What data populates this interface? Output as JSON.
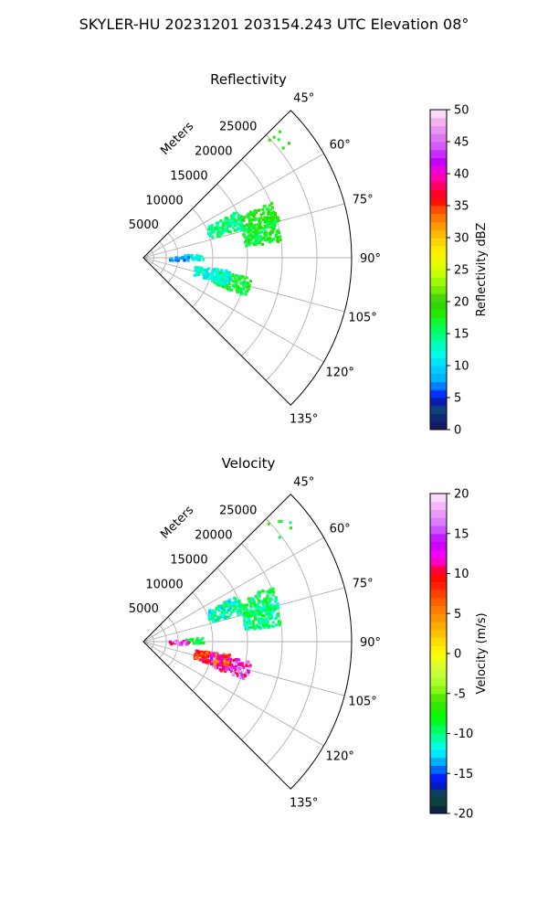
{
  "suptitle": "SKYLER-HU  20231201  203154.243 UTC Elevation 08°",
  "chart_data": [
    {
      "type": "polar-sector",
      "title": "Reflectivity",
      "range_label": "Meters",
      "angle_ticks": [
        "45°",
        "60°",
        "75°",
        "90°",
        "105°",
        "120°",
        "135°"
      ],
      "angle_values": [
        45,
        60,
        75,
        90,
        105,
        120,
        135
      ],
      "range_ticks": [
        "5000",
        "10000",
        "15000",
        "20000",
        "25000"
      ],
      "range_values": [
        5000,
        10000,
        15000,
        20000,
        25000
      ],
      "range_max": 30000,
      "colorbar": {
        "label": "Reflectivity dBZ",
        "min": 0,
        "max": 50,
        "ticks": [
          "0",
          "5",
          "10",
          "15",
          "20",
          "25",
          "30",
          "35",
          "40",
          "45",
          "50"
        ],
        "tick_values": [
          0,
          5,
          10,
          15,
          20,
          25,
          30,
          35,
          40,
          45,
          50
        ]
      },
      "echo_regions": [
        {
          "az": 71,
          "r": 17500,
          "value": 18
        },
        {
          "az": 78,
          "r": 17200,
          "value": 17
        },
        {
          "az": 68,
          "r": 12500,
          "value": 15
        },
        {
          "az": 105,
          "r": 13000,
          "value": 17
        },
        {
          "az": 103,
          "r": 10000,
          "value": 12
        },
        {
          "az": 88,
          "r": 7200,
          "value": 12
        },
        {
          "az": 90,
          "r": 5000,
          "value": 8
        },
        {
          "az": 49,
          "r": 26000,
          "value": 18
        }
      ]
    },
    {
      "type": "polar-sector",
      "title": "Velocity",
      "range_label": "Meters",
      "angle_ticks": [
        "45°",
        "60°",
        "75°",
        "90°",
        "105°",
        "120°",
        "135°"
      ],
      "angle_values": [
        45,
        60,
        75,
        90,
        105,
        120,
        135
      ],
      "range_ticks": [
        "5000",
        "10000",
        "15000",
        "20000",
        "25000"
      ],
      "range_values": [
        5000,
        10000,
        15000,
        20000,
        25000
      ],
      "range_max": 30000,
      "colorbar": {
        "label": "Velocity (m/s)",
        "min": -20,
        "max": 20,
        "ticks": [
          "-20",
          "-15",
          "-10",
          "-5",
          "0",
          "5",
          "10",
          "15",
          "20"
        ],
        "tick_values": [
          -20,
          -15,
          -10,
          -5,
          0,
          5,
          10,
          15,
          20
        ]
      },
      "echo_regions": [
        {
          "az": 71,
          "r": 17500,
          "value": -9
        },
        {
          "az": 78,
          "r": 17200,
          "value": -10
        },
        {
          "az": 68,
          "r": 12500,
          "value": -11
        },
        {
          "az": 105,
          "r": 13000,
          "value": 14
        },
        {
          "az": 103,
          "r": 10000,
          "value": 9
        },
        {
          "az": 88,
          "r": 7200,
          "value": -8
        },
        {
          "az": 90,
          "r": 5000,
          "value": 13
        },
        {
          "az": 49,
          "r": 26000,
          "value": -8
        }
      ]
    }
  ]
}
